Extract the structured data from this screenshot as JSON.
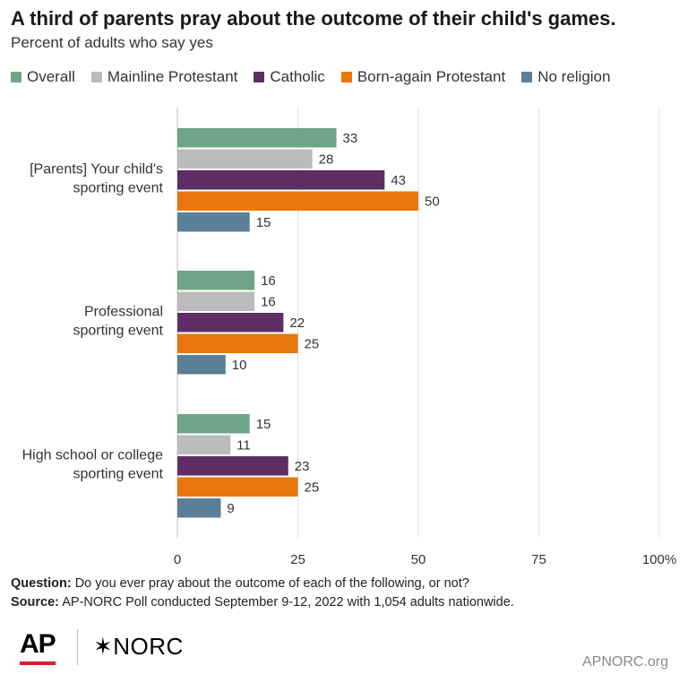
{
  "title": "A third of parents pray about the outcome of their child's games.",
  "subtitle": "Percent of adults who say yes",
  "chart_data": {
    "type": "bar",
    "orientation": "horizontal",
    "categories": [
      [
        "[Parents] Your child's",
        "sporting event"
      ],
      [
        "Professional",
        "sporting event"
      ],
      [
        "High school or college",
        "sporting event"
      ]
    ],
    "series": [
      {
        "name": "Overall",
        "color": "#6fa586",
        "values": [
          33,
          16,
          15
        ]
      },
      {
        "name": "Mainline Protestant",
        "color": "#bbbbbb",
        "values": [
          28,
          16,
          11
        ]
      },
      {
        "name": "Catholic",
        "color": "#5e2d63",
        "values": [
          43,
          22,
          23
        ]
      },
      {
        "name": "Born-again Protestant",
        "color": "#e8770c",
        "values": [
          50,
          25,
          25
        ]
      },
      {
        "name": "No religion",
        "color": "#5b7f96",
        "values": [
          15,
          10,
          9
        ]
      }
    ],
    "x_ticks": [
      "0",
      "25",
      "50",
      "75",
      "100%"
    ],
    "xlim": [
      0,
      100
    ],
    "grid": true,
    "legend_position": "top"
  },
  "footer": {
    "question_label": "Question:",
    "question_text": " Do you ever pray about the outcome of each of the following, or not?",
    "source_label": "Source:",
    "source_text": "  AP-NORC Poll conducted September 9-12, 2022 with 1,054 adults nationwide."
  },
  "logos": {
    "ap": "AP",
    "norc": "✶NORC"
  },
  "site": "APNORC.org"
}
